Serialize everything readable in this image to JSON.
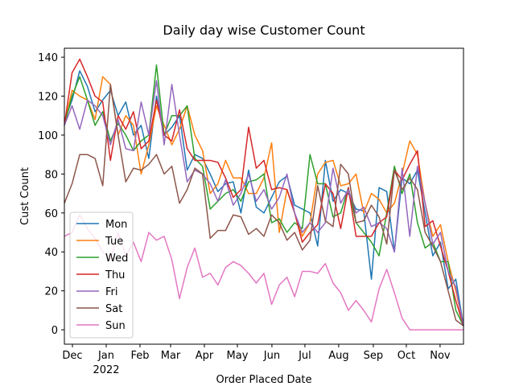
{
  "chart_data": {
    "type": "line",
    "title": "Daily day wise Customer Count",
    "xlabel": "Order Placed Date",
    "ylabel": "Cust Count",
    "x_year_label": "2022",
    "categories": [
      null,
      null,
      null,
      null,
      null,
      null,
      null,
      null,
      null,
      null,
      null,
      null,
      null,
      null,
      null,
      null,
      null,
      null,
      null,
      null,
      null,
      null,
      null,
      null,
      null,
      null,
      null,
      null,
      null,
      null,
      null,
      null,
      null,
      null,
      null,
      null,
      null,
      null,
      null,
      null,
      null,
      null,
      null,
      null,
      null,
      null,
      null,
      null,
      null,
      null,
      null,
      null,
      null
    ],
    "xlim": [
      0,
      52
    ],
    "xticks": [
      {
        "value": 1.05,
        "label": "Dec"
      },
      {
        "value": 5.45,
        "label": "Jan"
      },
      {
        "value": 9.85,
        "label": "Feb"
      },
      {
        "value": 13.84,
        "label": "Mar"
      },
      {
        "value": 18.24,
        "label": "Apr"
      },
      {
        "value": 22.54,
        "label": "May"
      },
      {
        "value": 27.04,
        "label": "Jun"
      },
      {
        "value": 31.34,
        "label": "Jul"
      },
      {
        "value": 35.74,
        "label": "Aug"
      },
      {
        "value": 40.25,
        "label": "Sep"
      },
      {
        "value": 44.55,
        "label": "Oct"
      },
      {
        "value": 48.95,
        "label": "Nov"
      }
    ],
    "ylim": [
      -7.4,
      144.6
    ],
    "yticks": [
      0,
      20,
      40,
      60,
      80,
      100,
      120,
      140
    ],
    "legend": "lower left",
    "series": [
      {
        "name": "Mon",
        "color": "#1f77b4",
        "values": [
          107,
          118,
          133,
          125,
          112,
          118,
          123,
          110,
          117,
          100,
          105,
          88,
          120,
          100,
          104,
          110,
          82,
          90,
          88,
          80,
          71,
          75,
          76,
          60,
          82,
          63,
          60,
          68,
          76,
          79,
          64,
          62,
          60,
          43,
          87,
          66,
          72,
          70,
          62,
          61,
          26,
          73,
          71,
          40,
          78,
          75,
          82,
          60,
          38,
          45,
          21,
          26,
          2
        ]
      },
      {
        "name": "Tue",
        "color": "#ff7f0e",
        "values": [
          105,
          123,
          120,
          118,
          108,
          130,
          126,
          100,
          110,
          105,
          80,
          95,
          115,
          105,
          95,
          103,
          115,
          100,
          92,
          70,
          75,
          87,
          78,
          78,
          70,
          70,
          78,
          96,
          50,
          72,
          60,
          48,
          55,
          80,
          86,
          87,
          74,
          75,
          80,
          60,
          70,
          67,
          60,
          65,
          80,
          97,
          90,
          65,
          48,
          54,
          35,
          20,
          2
        ]
      },
      {
        "name": "Wed",
        "color": "#2ca02c",
        "values": [
          105,
          120,
          130,
          118,
          105,
          112,
          97,
          106,
          100,
          92,
          97,
          100,
          136,
          100,
          110,
          110,
          115,
          88,
          84,
          62,
          66,
          70,
          72,
          66,
          76,
          77,
          80,
          55,
          57,
          50,
          55,
          52,
          90,
          75,
          75,
          58,
          60,
          73,
          55,
          50,
          45,
          38,
          60,
          84,
          70,
          80,
          55,
          42,
          45,
          35,
          35,
          10,
          2
        ]
      },
      {
        "name": "Thu",
        "color": "#d62728",
        "values": [
          105,
          132,
          139,
          130,
          120,
          117,
          87,
          110,
          103,
          112,
          93,
          97,
          118,
          100,
          97,
          113,
          93,
          87,
          87,
          87,
          86,
          78,
          68,
          72,
          104,
          83,
          87,
          72,
          73,
          72,
          60,
          45,
          50,
          54,
          75,
          70,
          52,
          73,
          48,
          48,
          48,
          55,
          58,
          82,
          77,
          85,
          92,
          53,
          56,
          43,
          30,
          15,
          2
        ]
      },
      {
        "name": "Fri",
        "color": "#9467bd",
        "values": [
          105,
          115,
          103,
          118,
          115,
          110,
          95,
          108,
          93,
          92,
          117,
          100,
          128,
          95,
          126,
          100,
          76,
          82,
          80,
          75,
          66,
          77,
          64,
          70,
          80,
          66,
          72,
          62,
          68,
          80,
          60,
          50,
          55,
          50,
          55,
          83,
          65,
          72,
          60,
          63,
          53,
          55,
          52,
          40,
          83,
          48,
          84,
          65,
          44,
          50,
          30,
          22,
          2
        ]
      },
      {
        "name": "Sat",
        "color": "#8c564b",
        "values": [
          65,
          75,
          90,
          90,
          88,
          74,
          126,
          100,
          76,
          83,
          82,
          85,
          90,
          80,
          84,
          65,
          72,
          83,
          80,
          47,
          51,
          51,
          59,
          58,
          49,
          52,
          48,
          59,
          55,
          46,
          50,
          41,
          46,
          74,
          56,
          53,
          85,
          80,
          55,
          56,
          64,
          58,
          44,
          82,
          72,
          78,
          72,
          50,
          43,
          35,
          20,
          5,
          2
        ]
      },
      {
        "name": "Sun",
        "color": "#e377c2",
        "values": [
          48,
          50,
          59,
          52,
          47,
          40,
          36,
          50,
          38,
          45,
          35,
          50,
          46,
          48,
          36,
          16,
          32,
          42,
          27,
          29,
          23,
          32,
          35,
          33,
          29,
          24,
          29,
          13,
          23,
          27,
          17,
          30,
          30,
          29,
          34,
          24,
          19,
          10,
          15,
          10,
          4,
          21,
          31,
          19,
          6,
          0,
          0,
          0,
          0,
          0,
          0,
          0,
          0
        ]
      }
    ]
  }
}
